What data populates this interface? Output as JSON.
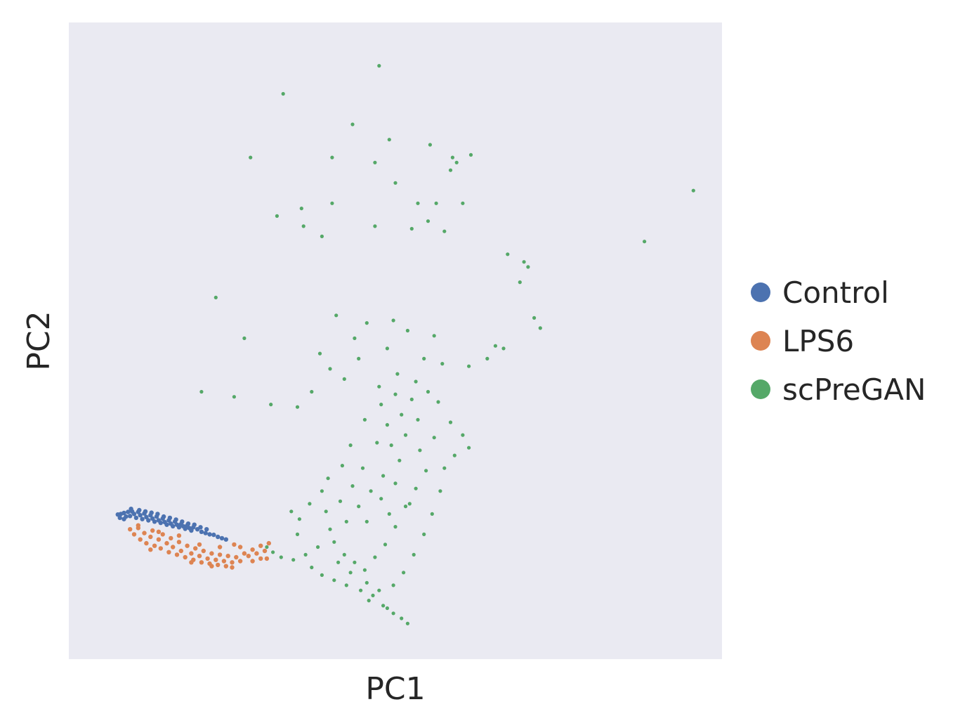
{
  "chart_data": {
    "type": "scatter",
    "title": "",
    "xlabel": "PC1",
    "ylabel": "PC2",
    "xlim": [
      -10,
      22
    ],
    "ylim": [
      -9,
      16
    ],
    "show_ticks": false,
    "grid": false,
    "background": "#eaeaf2",
    "legend_position": "right",
    "series": [
      {
        "name": "Control",
        "color": "#4c72b0",
        "points": [
          [
            -7.6,
            -3.32
          ],
          [
            -7.45,
            -3.3
          ],
          [
            -7.3,
            -3.26
          ],
          [
            -7.1,
            -3.22
          ],
          [
            -7.2,
            -3.4
          ],
          [
            -7.0,
            -3.38
          ],
          [
            -6.9,
            -3.2
          ],
          [
            -6.8,
            -3.3
          ],
          [
            -6.7,
            -3.45
          ],
          [
            -6.6,
            -3.22
          ],
          [
            -6.5,
            -3.35
          ],
          [
            -6.4,
            -3.5
          ],
          [
            -6.3,
            -3.28
          ],
          [
            -6.2,
            -3.42
          ],
          [
            -6.1,
            -3.55
          ],
          [
            -6.0,
            -3.35
          ],
          [
            -5.9,
            -3.48
          ],
          [
            -5.8,
            -3.6
          ],
          [
            -5.7,
            -3.4
          ],
          [
            -5.6,
            -3.55
          ],
          [
            -5.5,
            -3.65
          ],
          [
            -5.4,
            -3.48
          ],
          [
            -5.3,
            -3.62
          ],
          [
            -5.2,
            -3.72
          ],
          [
            -5.1,
            -3.55
          ],
          [
            -5.0,
            -3.68
          ],
          [
            -4.9,
            -3.78
          ],
          [
            -4.8,
            -3.6
          ],
          [
            -4.7,
            -3.72
          ],
          [
            -4.6,
            -3.82
          ],
          [
            -4.5,
            -3.7
          ],
          [
            -4.4,
            -3.78
          ],
          [
            -4.3,
            -3.88
          ],
          [
            -4.2,
            -3.75
          ],
          [
            -4.1,
            -3.85
          ],
          [
            -4.0,
            -3.95
          ],
          [
            -3.9,
            -3.82
          ],
          [
            -3.7,
            -3.9
          ],
          [
            -3.5,
            -4.0
          ],
          [
            -3.3,
            -4.05
          ],
          [
            -3.1,
            -4.1
          ],
          [
            -2.9,
            -4.12
          ],
          [
            -2.7,
            -4.2
          ],
          [
            -2.5,
            -4.25
          ],
          [
            -2.3,
            -4.3
          ],
          [
            -7.3,
            -3.5
          ],
          [
            -7.5,
            -3.45
          ],
          [
            -6.95,
            -3.1
          ],
          [
            -6.55,
            -3.15
          ],
          [
            -6.25,
            -3.2
          ],
          [
            -5.95,
            -3.25
          ],
          [
            -5.65,
            -3.3
          ],
          [
            -5.35,
            -3.4
          ],
          [
            -5.05,
            -3.45
          ],
          [
            -4.75,
            -3.52
          ],
          [
            -4.45,
            -3.6
          ],
          [
            -4.15,
            -3.68
          ],
          [
            -3.85,
            -3.72
          ],
          [
            -3.55,
            -3.82
          ],
          [
            -3.25,
            -3.9
          ]
        ]
      },
      {
        "name": "LPS6",
        "color": "#dd8452",
        "points": [
          [
            -7.0,
            -3.9
          ],
          [
            -6.8,
            -4.1
          ],
          [
            -6.6,
            -3.85
          ],
          [
            -6.5,
            -4.3
          ],
          [
            -6.3,
            -4.05
          ],
          [
            -6.2,
            -4.45
          ],
          [
            -6.0,
            -4.2
          ],
          [
            -5.9,
            -3.95
          ],
          [
            -5.8,
            -4.55
          ],
          [
            -5.6,
            -4.3
          ],
          [
            -5.5,
            -4.65
          ],
          [
            -5.4,
            -4.1
          ],
          [
            -5.2,
            -4.45
          ],
          [
            -5.1,
            -4.8
          ],
          [
            -5.0,
            -4.25
          ],
          [
            -4.9,
            -4.6
          ],
          [
            -4.7,
            -4.9
          ],
          [
            -4.6,
            -4.4
          ],
          [
            -4.5,
            -4.75
          ],
          [
            -4.3,
            -5.0
          ],
          [
            -4.2,
            -4.55
          ],
          [
            -4.0,
            -4.85
          ],
          [
            -3.9,
            -5.1
          ],
          [
            -3.8,
            -4.65
          ],
          [
            -3.6,
            -4.95
          ],
          [
            -3.5,
            -5.2
          ],
          [
            -3.4,
            -4.75
          ],
          [
            -3.2,
            -5.05
          ],
          [
            -3.1,
            -5.25
          ],
          [
            -3.0,
            -4.85
          ],
          [
            -2.8,
            -5.1
          ],
          [
            -2.7,
            -5.3
          ],
          [
            -2.6,
            -4.9
          ],
          [
            -2.4,
            -5.15
          ],
          [
            -2.3,
            -5.35
          ],
          [
            -2.2,
            -4.95
          ],
          [
            -2.0,
            -5.2
          ],
          [
            -1.8,
            -5.0
          ],
          [
            -1.6,
            -5.15
          ],
          [
            -1.4,
            -4.85
          ],
          [
            -1.2,
            -4.95
          ],
          [
            -1.0,
            -4.7
          ],
          [
            -0.8,
            -4.85
          ],
          [
            -0.6,
            -4.55
          ],
          [
            -0.4,
            -4.75
          ],
          [
            -0.2,
            -4.45
          ],
          [
            -0.6,
            -5.05
          ],
          [
            -1.6,
            -4.6
          ],
          [
            -2.6,
            -4.6
          ],
          [
            -3.6,
            -4.5
          ],
          [
            -4.6,
            -4.15
          ],
          [
            -5.6,
            -4.0
          ],
          [
            -6.6,
            -3.75
          ],
          [
            -6.0,
            -4.7
          ],
          [
            -4.0,
            -5.2
          ],
          [
            -3.0,
            -5.35
          ],
          [
            -2.0,
            -5.4
          ],
          [
            -1.0,
            -5.15
          ],
          [
            -0.3,
            -5.05
          ],
          [
            -1.9,
            -4.5
          ]
        ]
      },
      {
        "name": "scPreGAN",
        "color": "#55a868",
        "points": [
          [
            0.5,
            13.2
          ],
          [
            5.2,
            14.3
          ],
          [
            3.9,
            12.0
          ],
          [
            9.7,
            10.8
          ],
          [
            -1.1,
            10.7
          ],
          [
            2.9,
            10.7
          ],
          [
            7.7,
            11.2
          ],
          [
            5.7,
            11.4
          ],
          [
            5.0,
            10.5
          ],
          [
            8.8,
            10.7
          ],
          [
            9.0,
            10.5
          ],
          [
            8.7,
            10.2
          ],
          [
            6.0,
            9.7
          ],
          [
            2.9,
            8.9
          ],
          [
            7.1,
            8.9
          ],
          [
            8.0,
            8.9
          ],
          [
            9.3,
            8.9
          ],
          [
            0.2,
            8.4
          ],
          [
            20.6,
            9.4
          ],
          [
            1.4,
            8.7
          ],
          [
            7.6,
            8.2
          ],
          [
            1.5,
            8.0
          ],
          [
            6.8,
            7.9
          ],
          [
            5.0,
            8.0
          ],
          [
            2.4,
            7.6
          ],
          [
            8.4,
            7.8
          ],
          [
            18.2,
            7.4
          ],
          [
            11.5,
            6.9
          ],
          [
            12.3,
            6.6
          ],
          [
            12.5,
            6.4
          ],
          [
            -2.8,
            5.2
          ],
          [
            12.1,
            5.8
          ],
          [
            12.8,
            4.4
          ],
          [
            13.1,
            4.0
          ],
          [
            -1.4,
            3.6
          ],
          [
            10.9,
            3.3
          ],
          [
            11.3,
            3.2
          ],
          [
            10.5,
            2.8
          ],
          [
            -3.5,
            1.5
          ],
          [
            -1.9,
            1.3
          ],
          [
            -0.1,
            1.0
          ],
          [
            1.2,
            0.9
          ],
          [
            2.8,
            2.4
          ],
          [
            3.5,
            2.0
          ],
          [
            4.2,
            2.8
          ],
          [
            5.2,
            1.7
          ],
          [
            6.1,
            2.2
          ],
          [
            7.0,
            1.9
          ],
          [
            4.0,
            3.6
          ],
          [
            5.6,
            3.2
          ],
          [
            6.6,
            3.9
          ],
          [
            7.4,
            2.8
          ],
          [
            4.6,
            4.2
          ],
          [
            5.9,
            4.3
          ],
          [
            3.1,
            4.5
          ],
          [
            7.9,
            3.7
          ],
          [
            8.3,
            2.6
          ],
          [
            2.3,
            3.0
          ],
          [
            9.6,
            2.5
          ],
          [
            1.9,
            1.5
          ],
          [
            2.6,
            -3.2
          ],
          [
            3.0,
            -4.4
          ],
          [
            3.5,
            -4.9
          ],
          [
            4.0,
            -5.2
          ],
          [
            4.5,
            -5.5
          ],
          [
            5.0,
            -5.0
          ],
          [
            5.5,
            -4.5
          ],
          [
            6.0,
            -3.8
          ],
          [
            6.5,
            -3.0
          ],
          [
            7.0,
            -2.3
          ],
          [
            7.5,
            -1.6
          ],
          [
            6.2,
            -1.2
          ],
          [
            5.8,
            -0.6
          ],
          [
            6.5,
            -0.2
          ],
          [
            7.2,
            -0.8
          ],
          [
            5.4,
            -1.8
          ],
          [
            4.8,
            -2.4
          ],
          [
            4.2,
            -3.0
          ],
          [
            3.6,
            -3.6
          ],
          [
            3.2,
            -5.2
          ],
          [
            3.8,
            -5.6
          ],
          [
            4.6,
            -6.0
          ],
          [
            5.2,
            -6.3
          ],
          [
            5.9,
            -6.1
          ],
          [
            6.4,
            -5.6
          ],
          [
            6.9,
            -4.9
          ],
          [
            7.4,
            -4.1
          ],
          [
            7.8,
            -3.3
          ],
          [
            8.2,
            -2.4
          ],
          [
            8.4,
            -1.5
          ],
          [
            7.9,
            -0.3
          ],
          [
            7.1,
            0.4
          ],
          [
            6.3,
            0.6
          ],
          [
            5.6,
            0.2
          ],
          [
            5.1,
            -0.5
          ],
          [
            4.4,
            -1.5
          ],
          [
            3.9,
            -2.2
          ],
          [
            3.3,
            -2.8
          ],
          [
            2.8,
            -3.9
          ],
          [
            2.2,
            -4.6
          ],
          [
            1.6,
            -4.9
          ],
          [
            1.0,
            -5.1
          ],
          [
            0.4,
            -5.0
          ],
          [
            0.0,
            -4.8
          ],
          [
            -0.3,
            -4.6
          ],
          [
            1.3,
            -3.5
          ],
          [
            1.8,
            -2.9
          ],
          [
            0.9,
            -3.2
          ],
          [
            2.4,
            -2.4
          ],
          [
            1.2,
            -4.1
          ],
          [
            4.7,
            -6.7
          ],
          [
            5.4,
            -6.9
          ],
          [
            5.9,
            -7.2
          ],
          [
            6.3,
            -7.4
          ],
          [
            6.6,
            -7.6
          ],
          [
            5.6,
            -7.0
          ],
          [
            4.9,
            -6.5
          ],
          [
            4.3,
            -6.3
          ],
          [
            3.6,
            -6.1
          ],
          [
            3.0,
            -5.9
          ],
          [
            2.4,
            -5.7
          ],
          [
            1.9,
            -5.4
          ],
          [
            8.9,
            -1.0
          ],
          [
            9.3,
            -0.2
          ],
          [
            9.6,
            -0.7
          ],
          [
            8.7,
            0.3
          ],
          [
            8.1,
            1.1
          ],
          [
            7.6,
            1.5
          ],
          [
            6.8,
            1.2
          ],
          [
            6.0,
            1.4
          ],
          [
            5.3,
            1.0
          ],
          [
            4.5,
            0.4
          ],
          [
            3.8,
            -0.6
          ],
          [
            3.4,
            -1.4
          ],
          [
            2.7,
            -1.9
          ],
          [
            6.7,
            -2.9
          ],
          [
            6.0,
            -2.1
          ],
          [
            5.3,
            -2.7
          ],
          [
            4.6,
            -3.6
          ],
          [
            5.7,
            -3.3
          ]
        ]
      }
    ]
  }
}
